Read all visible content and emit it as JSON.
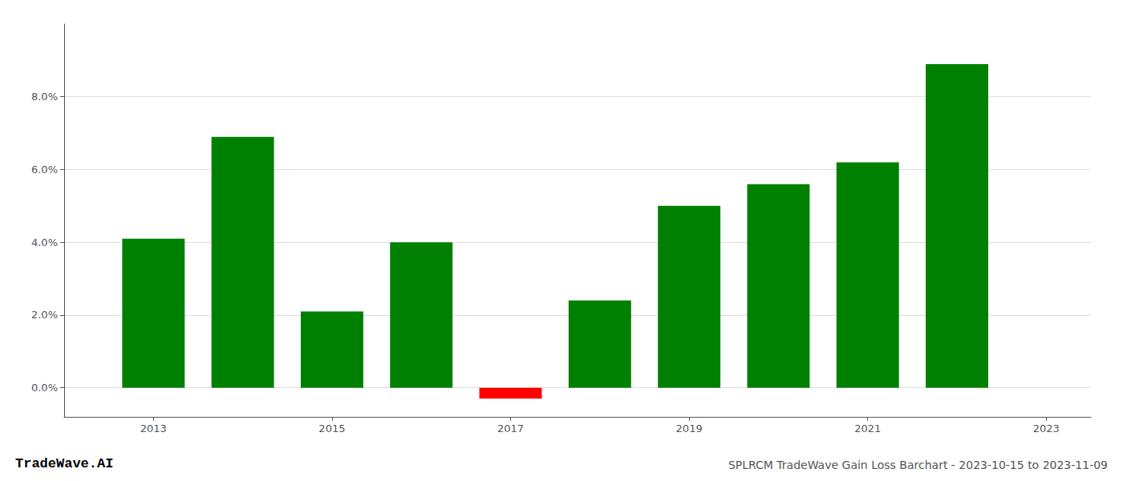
{
  "chart_data": {
    "type": "bar",
    "title": "SPLRCM TradeWave Gain Loss Barchart - 2023-10-15 to 2023-11-09",
    "annotations": [
      "TradeWave.AI"
    ],
    "x": [
      2013,
      2014,
      2015,
      2016,
      2017,
      2018,
      2019,
      2020,
      2021,
      2022
    ],
    "values": [
      0.041,
      0.069,
      0.021,
      0.04,
      -0.003,
      0.024,
      0.05,
      0.056,
      0.062,
      0.089
    ],
    "colors": [
      "#008000",
      "#008000",
      "#008000",
      "#008000",
      "#ff0000",
      "#008000",
      "#008000",
      "#008000",
      "#008000",
      "#008000"
    ],
    "xlim": [
      2012.0,
      2023.5
    ],
    "xticks": [
      2013,
      2015,
      2017,
      2019,
      2021,
      2023
    ],
    "ylim": [
      -0.008,
      0.1
    ],
    "yticks": [
      {
        "value": 0.0,
        "label": "0.0%"
      },
      {
        "value": 0.02,
        "label": "2.0%"
      },
      {
        "value": 0.04,
        "label": "4.0%"
      },
      {
        "value": 0.06,
        "label": "6.0%"
      },
      {
        "value": 0.08,
        "label": "8.0%"
      }
    ],
    "grid": true
  }
}
